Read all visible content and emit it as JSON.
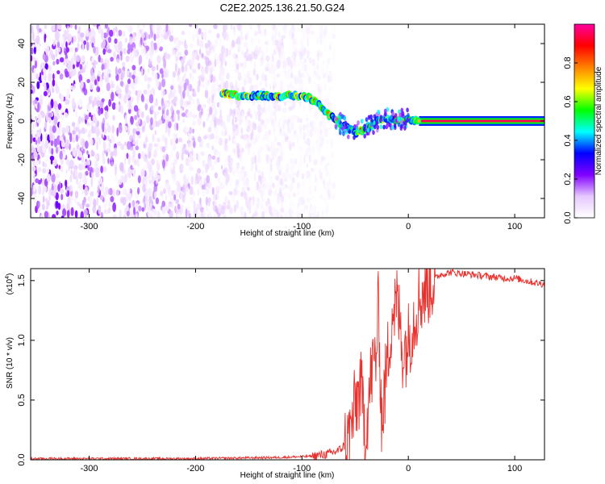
{
  "title": "C2E2.2025.136.21.50.G24",
  "chart_data": [
    {
      "type": "heatmap",
      "xlabel": "Height of straight line (km)",
      "ylabel": "Frequency (Hz)",
      "xlim": [
        -355,
        128
      ],
      "ylim": [
        -50,
        50
      ],
      "xticks": [
        -300,
        -200,
        -100,
        0,
        100
      ],
      "yticks": [
        -40,
        -20,
        0,
        20,
        40
      ],
      "noise_region_km": [
        -355,
        -70
      ],
      "signal_track": [
        {
          "x": -175,
          "y": 14
        },
        {
          "x": -160,
          "y": 13
        },
        {
          "x": -140,
          "y": 13
        },
        {
          "x": -120,
          "y": 13
        },
        {
          "x": -100,
          "y": 13
        },
        {
          "x": -90,
          "y": 11
        },
        {
          "x": -80,
          "y": 6
        },
        {
          "x": -70,
          "y": 1
        },
        {
          "x": -60,
          "y": -3
        },
        {
          "x": -50,
          "y": -6
        },
        {
          "x": -40,
          "y": -4
        },
        {
          "x": -30,
          "y": 0
        },
        {
          "x": -20,
          "y": 1
        },
        {
          "x": -10,
          "y": 1
        },
        {
          "x": 0,
          "y": 1
        },
        {
          "x": 10,
          "y": 0
        },
        {
          "x": 128,
          "y": 0
        }
      ],
      "colorbar": {
        "label": "Normalized spectral amplitude",
        "range": [
          0,
          1
        ],
        "ticks": [
          "0.0",
          "0.2",
          "0.4",
          "0.6",
          "0.8"
        ],
        "colors": [
          "#ffffff",
          "#e6c8ff",
          "#8000ff",
          "#0000ff",
          "#00ffff",
          "#00ff00",
          "#ffff00",
          "#ff8000",
          "#ff0000",
          "#ff00a0"
        ]
      }
    },
    {
      "type": "line",
      "xlabel": "Height of straight line (km)",
      "ylabel": "SNR (10 * v/v)",
      "scale_label": "(x10",
      "scale_exp": "4",
      "xlim": [
        -355,
        128
      ],
      "ylim": [
        0,
        1.6
      ],
      "xticks": [
        -300,
        -200,
        -100,
        0,
        100
      ],
      "yticks": [
        "0.0",
        "0.5",
        "1.0",
        "1.5"
      ],
      "series": [
        {
          "color": "#e8302c",
          "x": [
            -355,
            -300,
            -200,
            -120,
            -90,
            -75,
            -65,
            -60,
            -55,
            -50,
            -45,
            -40,
            -35,
            -30,
            -28,
            -25,
            -20,
            -15,
            -10,
            -5,
            0,
            10,
            20,
            30,
            40,
            50,
            60,
            70,
            80,
            90,
            100,
            110,
            120,
            128
          ],
          "y": [
            0.01,
            0.01,
            0.01,
            0.02,
            0.03,
            0.05,
            0.08,
            0.12,
            0.2,
            0.45,
            0.6,
            0.25,
            0.7,
            0.9,
            1.3,
            0.3,
            0.8,
            1.25,
            1.3,
            0.9,
            1.0,
            1.35,
            1.48,
            1.55,
            1.57,
            1.56,
            1.55,
            1.54,
            1.53,
            1.52,
            1.52,
            1.5,
            1.48,
            1.47
          ],
          "noise_amplitude": 0.35
        }
      ]
    }
  ]
}
